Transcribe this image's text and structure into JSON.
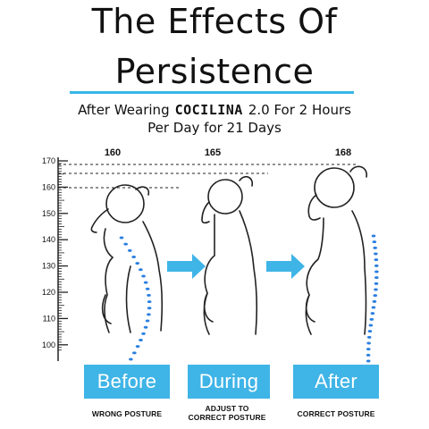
{
  "title": {
    "line1": "The Effects Of",
    "line2": "Persistence"
  },
  "subtitle": {
    "prefix": "After Wearing",
    "brand": "COCILINA",
    "suffix": "2.0 For 2 Hours",
    "line2": "Per Day for 21 Days"
  },
  "ruler": {
    "ticks": [
      "170",
      "160",
      "150",
      "140",
      "130",
      "120",
      "110",
      "100"
    ]
  },
  "figures": [
    {
      "height": "160",
      "label": "Before",
      "caption_line1": "WRONG POSTURE",
      "caption_line2": ""
    },
    {
      "height": "165",
      "label": "During",
      "caption_line1": "ADJUST TO",
      "caption_line2": "CORRECT POSTURE"
    },
    {
      "height": "168",
      "label": "After",
      "caption_line1": "CORRECT POSTURE",
      "caption_line2": ""
    }
  ],
  "colors": {
    "accent": "#3fb4e6",
    "rule": "#38b6e8",
    "spine_dots": "#2a7fe0"
  },
  "icons": [
    "arrow-right-icon",
    "arrow-right-icon"
  ]
}
